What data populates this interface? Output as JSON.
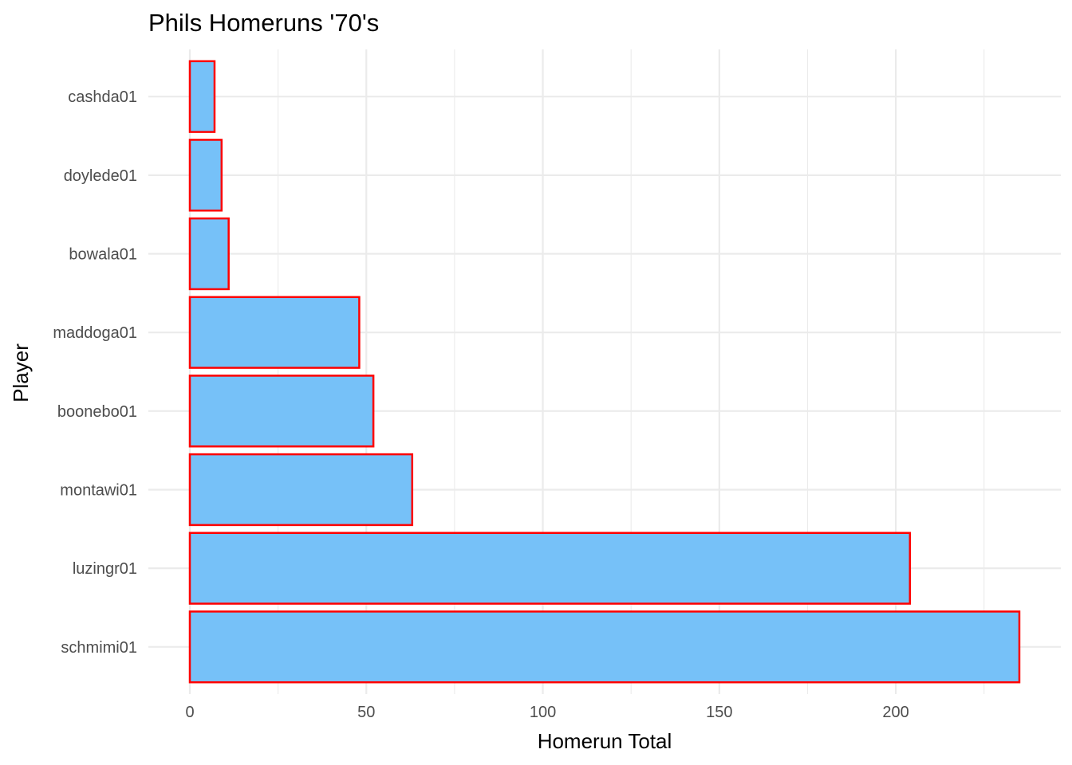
{
  "chart_data": {
    "type": "bar",
    "orientation": "horizontal",
    "title": "Phils Homeruns '70's",
    "xlabel": "Homerun Total",
    "ylabel": "Player",
    "categories": [
      "schmimi01",
      "luzingr01",
      "montawi01",
      "boonebo01",
      "maddoga01",
      "bowala01",
      "doylede01",
      "cashda01"
    ],
    "values": [
      235,
      204,
      63,
      52,
      48,
      11,
      9,
      7
    ],
    "xlim": [
      -11.75,
      246.75
    ],
    "xticks": [
      0,
      50,
      100,
      150,
      200
    ],
    "xtick_labels": [
      "0",
      "50",
      "100",
      "150",
      "200"
    ],
    "grid": true,
    "legend": "none",
    "colors": {
      "fill": "#76c1f8",
      "outline": "#ff0000"
    }
  }
}
